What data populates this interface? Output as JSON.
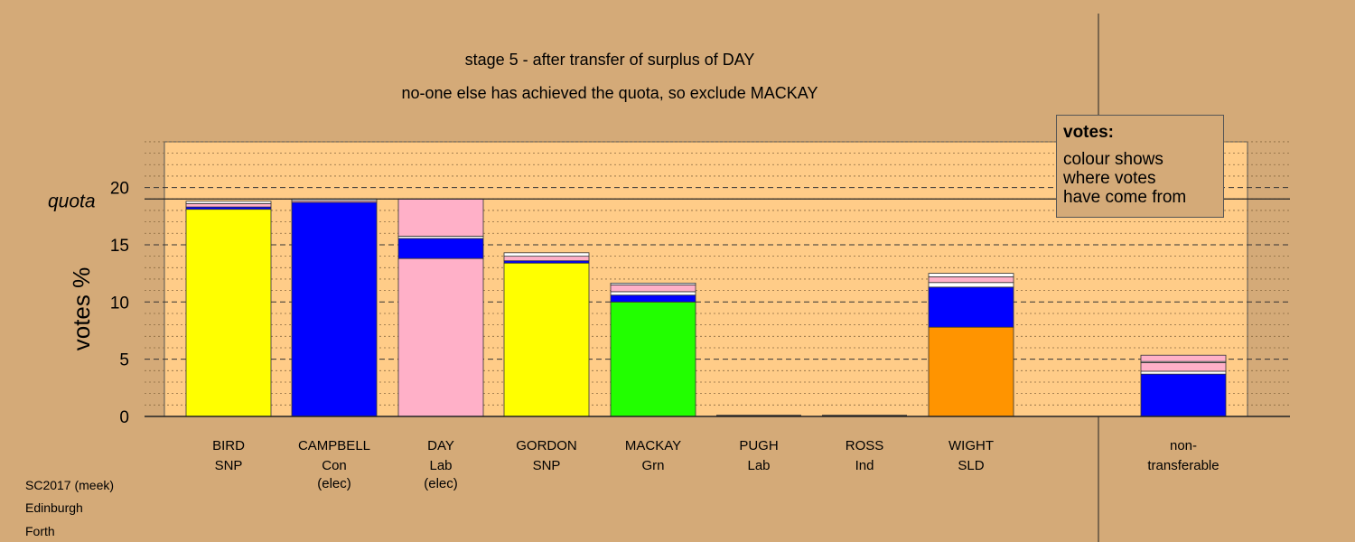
{
  "title": "stage 5 - after transfer of surplus of DAY",
  "subtitle": "no-one else has achieved the quota, so exclude MACKAY",
  "legend": {
    "title": "votes:",
    "lines": [
      "colour shows",
      "where votes",
      "have come from"
    ]
  },
  "footer": [
    "SC2017 (meek)",
    "Edinburgh",
    "Forth"
  ],
  "colors": {
    "background": "#d4aa78",
    "plot_panel": "#ffcc88",
    "SNP": "#ffff00",
    "Con": "#0000ff",
    "Lab": "#ffb0c8",
    "Grn": "#22ff00",
    "SLD": "#ff9400",
    "other": "#ffffff"
  },
  "chart_data": {
    "type": "bar",
    "stacked": true,
    "ylabel": "votes %",
    "ylim": [
      0,
      24
    ],
    "yticks": [
      0,
      5,
      10,
      15,
      20
    ],
    "quota_label": "quota",
    "quota": 19,
    "grid": true,
    "categories": [
      {
        "name": "BIRD",
        "party": "SNP",
        "note": ""
      },
      {
        "name": "CAMPBELL",
        "party": "Con",
        "note": "(elec)"
      },
      {
        "name": "DAY",
        "party": "Lab",
        "note": "(elec)"
      },
      {
        "name": "GORDON",
        "party": "SNP",
        "note": ""
      },
      {
        "name": "MACKAY",
        "party": "Grn",
        "note": ""
      },
      {
        "name": "PUGH",
        "party": "Lab",
        "note": ""
      },
      {
        "name": "ROSS",
        "party": "Ind",
        "note": ""
      },
      {
        "name": "WIGHT",
        "party": "SLD",
        "note": ""
      },
      {
        "name": "non-",
        "party": "transferable",
        "note": ""
      }
    ],
    "segments": [
      [
        {
          "from": "SNP",
          "value": 18.1
        },
        {
          "from": "Con",
          "value": 0.2
        },
        {
          "from": "Lab",
          "value": 0.3
        },
        {
          "from": "other",
          "value": 0.2
        }
      ],
      [
        {
          "from": "Con",
          "value": 18.7
        },
        {
          "from": "Lab",
          "value": 0.15
        },
        {
          "from": "other",
          "value": 0.15
        }
      ],
      [
        {
          "from": "Lab",
          "value": 13.8
        },
        {
          "from": "Con",
          "value": 1.75
        },
        {
          "from": "other",
          "value": 0.2
        },
        {
          "from": "Lab",
          "value": 3.25
        }
      ],
      [
        {
          "from": "SNP",
          "value": 13.4
        },
        {
          "from": "Con",
          "value": 0.2
        },
        {
          "from": "Lab",
          "value": 0.4
        },
        {
          "from": "other",
          "value": 0.3
        }
      ],
      [
        {
          "from": "Grn",
          "value": 10.0
        },
        {
          "from": "Con",
          "value": 0.6
        },
        {
          "from": "other",
          "value": 0.3
        },
        {
          "from": "Lab",
          "value": 0.6
        },
        {
          "from": "other",
          "value": 0.15
        }
      ],
      [],
      [],
      [
        {
          "from": "SLD",
          "value": 7.8
        },
        {
          "from": "Con",
          "value": 3.5
        },
        {
          "from": "other",
          "value": 0.4
        },
        {
          "from": "Lab",
          "value": 0.5
        },
        {
          "from": "other",
          "value": 0.3
        }
      ],
      [
        {
          "from": "Con",
          "value": 3.7
        },
        {
          "from": "other",
          "value": 0.25
        },
        {
          "from": "Lab",
          "value": 0.75
        },
        {
          "from": "other",
          "value": 0.1
        },
        {
          "from": "Lab",
          "value": 0.55
        }
      ]
    ]
  }
}
